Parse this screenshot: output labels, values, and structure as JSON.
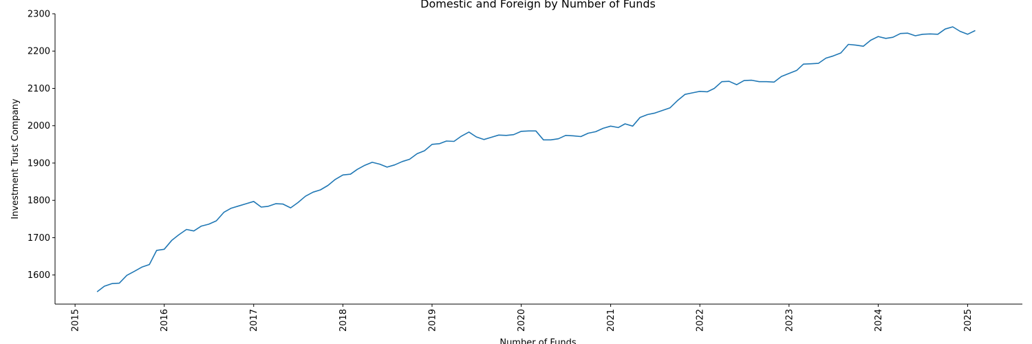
{
  "chart_data": {
    "type": "line",
    "title": "Domestic and Foreign by Number of Funds",
    "xlabel": "Number of Funds",
    "ylabel": "Investment Trust Company",
    "xlim": [
      "2014-10-11",
      "2025-08-13"
    ],
    "ylim": [
      1522,
      2300
    ],
    "x_ticks": [
      "2015",
      "2016",
      "2017",
      "2018",
      "2019",
      "2020",
      "2021",
      "2022",
      "2023",
      "2024",
      "2025"
    ],
    "y_ticks": [
      1600,
      1700,
      1800,
      1900,
      2000,
      2100,
      2200,
      2300
    ],
    "grid": false,
    "series": [
      {
        "color": "#1f77b4",
        "x": [
          "2015-04",
          "2015-05",
          "2015-06",
          "2015-07",
          "2015-08",
          "2015-09",
          "2015-10",
          "2015-11",
          "2015-12",
          "2016-01",
          "2016-02",
          "2016-03",
          "2016-04",
          "2016-05",
          "2016-06",
          "2016-07",
          "2016-08",
          "2016-09",
          "2016-10",
          "2016-11",
          "2016-12",
          "2017-01",
          "2017-02",
          "2017-03",
          "2017-04",
          "2017-05",
          "2017-06",
          "2017-07",
          "2017-08",
          "2017-09",
          "2017-10",
          "2017-11",
          "2017-12",
          "2018-01",
          "2018-02",
          "2018-03",
          "2018-04",
          "2018-05",
          "2018-06",
          "2018-07",
          "2018-08",
          "2018-09",
          "2018-10",
          "2018-11",
          "2018-12",
          "2019-01",
          "2019-02",
          "2019-03",
          "2019-04",
          "2019-05",
          "2019-06",
          "2019-07",
          "2019-08",
          "2019-09",
          "2019-10",
          "2019-11",
          "2019-12",
          "2020-01",
          "2020-02",
          "2020-03",
          "2020-04",
          "2020-05",
          "2020-06",
          "2020-07",
          "2020-08",
          "2020-09",
          "2020-10",
          "2020-11",
          "2020-12",
          "2021-01",
          "2021-02",
          "2021-03",
          "2021-04",
          "2021-05",
          "2021-06",
          "2021-07",
          "2021-08",
          "2021-09",
          "2021-10",
          "2021-11",
          "2021-12",
          "2022-01",
          "2022-02",
          "2022-03",
          "2022-04",
          "2022-05",
          "2022-06",
          "2022-07",
          "2022-08",
          "2022-09",
          "2022-10",
          "2022-11",
          "2022-12",
          "2023-01",
          "2023-02",
          "2023-03",
          "2023-04",
          "2023-05",
          "2023-06",
          "2023-07",
          "2023-08",
          "2023-09",
          "2023-10",
          "2023-11",
          "2023-12",
          "2024-01",
          "2024-02",
          "2024-03",
          "2024-04",
          "2024-05",
          "2024-06",
          "2024-07",
          "2024-08",
          "2024-09",
          "2024-10",
          "2024-11",
          "2024-12",
          "2025-01",
          "2025-02"
        ],
        "values": [
          1555,
          1570,
          1577,
          1578,
          1599,
          1610,
          1621,
          1628,
          1666,
          1669,
          1693,
          1708,
          1722,
          1718,
          1731,
          1736,
          1745,
          1768,
          1779,
          1785,
          1791,
          1797,
          1782,
          1784,
          1791,
          1790,
          1780,
          1794,
          1811,
          1822,
          1828,
          1840,
          1856,
          1868,
          1870,
          1883,
          1894,
          1902,
          1897,
          1889,
          1895,
          1904,
          1910,
          1925,
          1933,
          1950,
          1952,
          1959,
          1958,
          1972,
          1983,
          1970,
          1963,
          1969,
          1975,
          1974,
          1976,
          1985,
          1986,
          1986,
          1962,
          1962,
          1965,
          1974,
          1973,
          1971,
          1980,
          1984,
          1993,
          1999,
          1995,
          2005,
          1999,
          2022,
          2030,
          2034,
          2041,
          2048,
          2067,
          2084,
          2088,
          2092,
          2091,
          2100,
          2118,
          2119,
          2110,
          2121,
          2122,
          2118,
          2118,
          2117,
          2132,
          2140,
          2148,
          2165,
          2166,
          2167,
          2181,
          2187,
          2195,
          2218,
          2216,
          2213,
          2229,
          2239,
          2234,
          2237,
          2247,
          2248,
          2241,
          2245,
          2246,
          2245,
          2259,
          2265,
          2253,
          2245,
          2255
        ]
      }
    ]
  }
}
